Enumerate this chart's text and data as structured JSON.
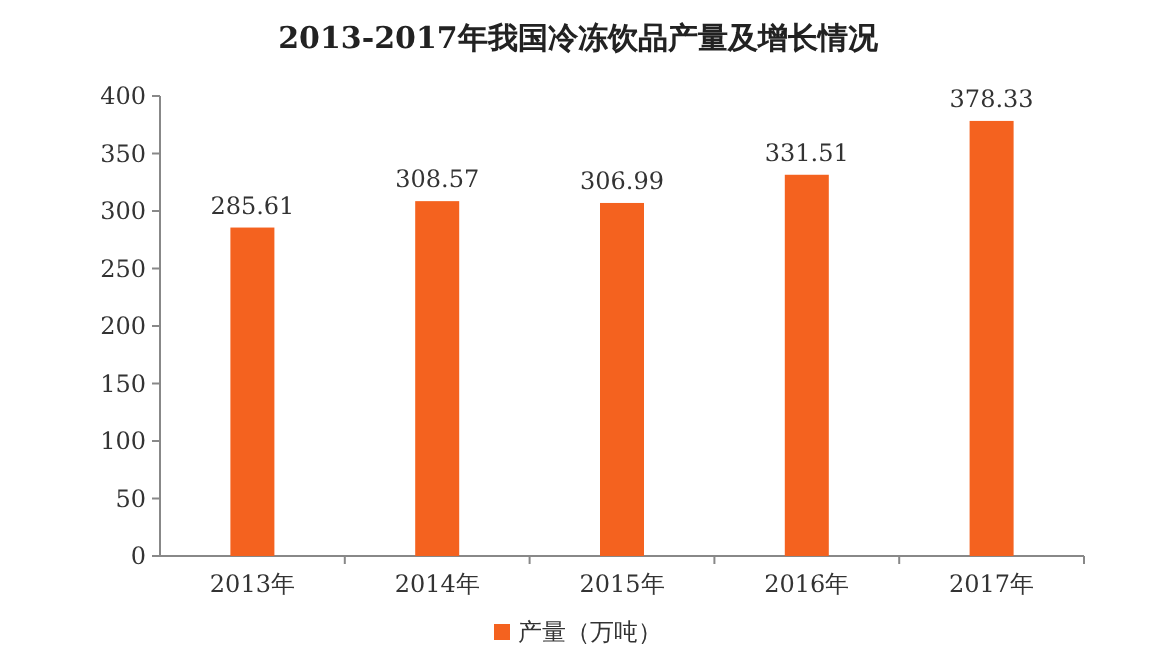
{
  "chart_data": {
    "type": "bar",
    "title": "2013-2017年我国冷冻饮品产量及增长情况",
    "categories": [
      "2013年",
      "2014年",
      "2015年",
      "2016年",
      "2017年"
    ],
    "series": [
      {
        "name": "产量（万吨）",
        "color": "#f4621f",
        "values": [
          285.61,
          308.57,
          306.99,
          331.51,
          378.33
        ]
      }
    ],
    "ylim": [
      0,
      400
    ],
    "yticks": [
      0,
      50,
      100,
      150,
      200,
      250,
      300,
      350,
      400
    ],
    "data_labels": true,
    "legend": "bottom"
  }
}
